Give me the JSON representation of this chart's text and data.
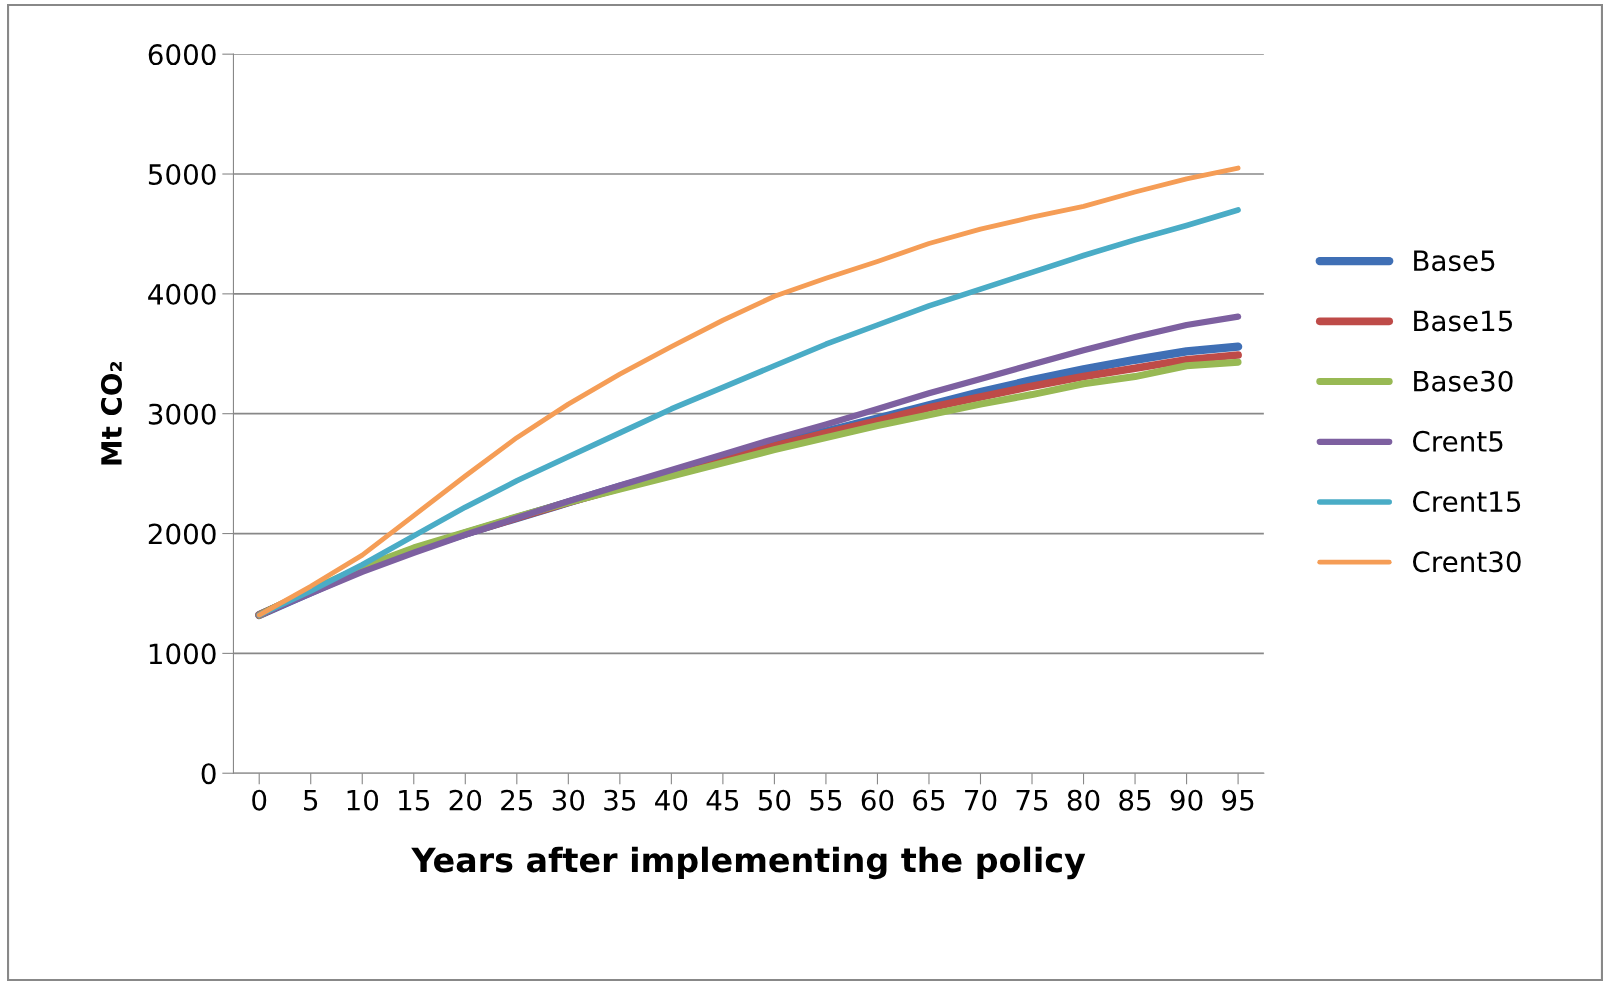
{
  "chart_data": {
    "type": "line",
    "xlabel": "Years after implementing the policy",
    "ylabel": "Mt CO₂",
    "categories": [
      "0",
      "5",
      "10",
      "15",
      "20",
      "25",
      "30",
      "35",
      "40",
      "45",
      "50",
      "55",
      "60",
      "65",
      "70",
      "75",
      "80",
      "85",
      "90",
      "95"
    ],
    "ylim": [
      0,
      6000
    ],
    "yticks": [
      0,
      1000,
      2000,
      3000,
      4000,
      5000,
      6000
    ],
    "grid": "y",
    "legend": "right",
    "marker": "none",
    "line_style": "solid",
    "series": [
      {
        "name": "Base5",
        "color": "#3f6fb5",
        "values": [
          1320,
          1510,
          1700,
          1860,
          2000,
          2130,
          2260,
          2390,
          2510,
          2630,
          2750,
          2850,
          2960,
          3070,
          3180,
          3280,
          3370,
          3450,
          3520,
          3560
        ]
      },
      {
        "name": "Base15",
        "color": "#be4b48",
        "values": [
          1320,
          1520,
          1710,
          1870,
          2000,
          2130,
          2260,
          2380,
          2500,
          2620,
          2730,
          2840,
          2940,
          3050,
          3140,
          3230,
          3310,
          3380,
          3450,
          3490
        ]
      },
      {
        "name": "Base30",
        "color": "#98b954",
        "values": [
          1320,
          1530,
          1720,
          1880,
          2010,
          2140,
          2260,
          2370,
          2480,
          2590,
          2700,
          2800,
          2900,
          2990,
          3080,
          3160,
          3250,
          3310,
          3400,
          3430
        ]
      },
      {
        "name": "Crent5",
        "color": "#7d60a0",
        "values": [
          1320,
          1500,
          1680,
          1840,
          1990,
          2130,
          2270,
          2400,
          2530,
          2660,
          2790,
          2910,
          3040,
          3170,
          3290,
          3410,
          3530,
          3640,
          3740,
          3810
        ]
      },
      {
        "name": "Crent15",
        "color": "#4aacc6",
        "values": [
          1320,
          1520,
          1740,
          1980,
          2220,
          2440,
          2640,
          2840,
          3040,
          3220,
          3400,
          3580,
          3740,
          3900,
          4040,
          4180,
          4320,
          4450,
          4570,
          4700
        ]
      },
      {
        "name": "Crent30",
        "color": "#f59d56",
        "values": [
          1320,
          1560,
          1820,
          2150,
          2480,
          2800,
          3080,
          3330,
          3560,
          3780,
          3980,
          4130,
          4270,
          4420,
          4540,
          4640,
          4730,
          4850,
          4960,
          5050
        ]
      }
    ]
  }
}
